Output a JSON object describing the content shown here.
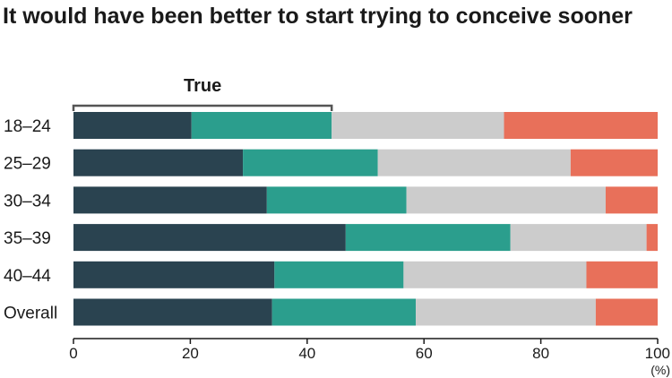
{
  "chart_data": {
    "type": "bar",
    "orientation": "horizontal",
    "stacked": true,
    "title": "It would have been better to start trying to conceive sooner",
    "xlabel": "",
    "ylabel": "",
    "unit_label": "(%)",
    "xlim": [
      0,
      100
    ],
    "xticks": [
      "0",
      "20",
      "40",
      "60",
      "80",
      "100"
    ],
    "grid": false,
    "categories": [
      "18–24",
      "25–29",
      "30–34",
      "35–39",
      "40–44",
      "Overall"
    ],
    "annotation": {
      "label": "True",
      "covers_series": [
        0,
        1
      ]
    },
    "series": [
      {
        "color": "#2a4350",
        "values": [
          20.2,
          29.0,
          33.1,
          46.6,
          34.4,
          34.0
        ]
      },
      {
        "color": "#2b9e8d",
        "values": [
          24.0,
          23.1,
          23.9,
          28.2,
          22.1,
          24.6
        ]
      },
      {
        "color": "#cccccc",
        "values": [
          29.5,
          33.0,
          34.1,
          23.3,
          31.3,
          30.8
        ]
      },
      {
        "color": "#e8705a",
        "values": [
          26.3,
          14.9,
          8.9,
          1.9,
          12.2,
          10.6
        ]
      }
    ]
  }
}
